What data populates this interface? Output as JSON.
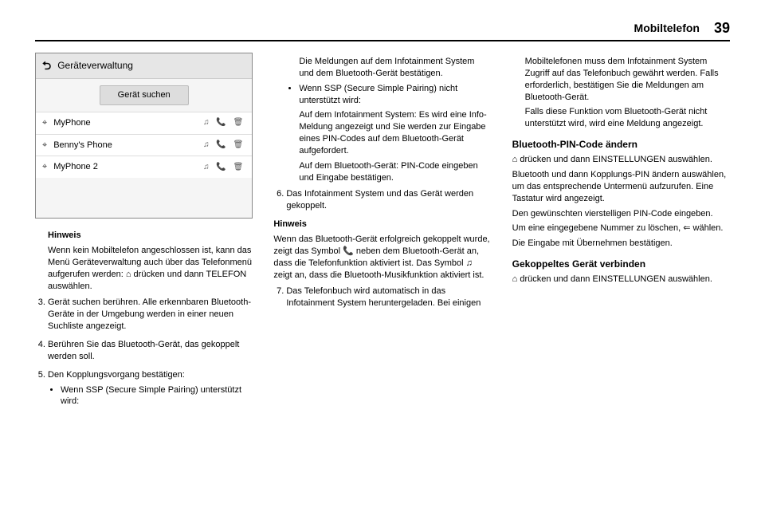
{
  "header": {
    "title": "Mobiltelefon",
    "page": "39"
  },
  "screenshot": {
    "title": "Geräteverwaltung",
    "back": "⮌",
    "search_btn": "Gerät suchen",
    "rows": [
      {
        "bt": "⌖",
        "name": "MyPhone",
        "icons": "♫  📞  🗑"
      },
      {
        "bt": "⌖",
        "name": "Benny's Phone",
        "icons": "♫  📞  🗑"
      },
      {
        "bt": "⌖",
        "name": "MyPhone 2",
        "icons": "♫  📞  🗑"
      }
    ]
  },
  "col1": {
    "hinweis_label": "Hinweis",
    "hinweis_text": "Wenn kein Mobiltelefon angeschlossen ist, kann das Menü Geräteverwaltung auch über das Telefonmenü aufgerufen werden: ⌂ drücken und dann TELEFON auswählen.",
    "step3": "Gerät suchen berühren. Alle erkennbaren Bluetooth-Geräte in der Umgebung werden in einer neuen Suchliste angezeigt.",
    "step4": "Berühren Sie das Bluetooth-Gerät, das gekoppelt werden soll.",
    "step5": "Den Kopplungsvorgang bestätigen:",
    "step5a": "Wenn SSP (Secure Simple Pairing) unterstützt wird:"
  },
  "col2": {
    "p1": "Die Meldungen auf dem Infotainment System und dem Bluetooth-Gerät bestätigen.",
    "b2_lead": "Wenn SSP (Secure Simple Pairing) nicht unterstützt wird:",
    "b2_a": "Auf dem Infotainment System: Es wird eine Info-Meldung angezeigt und Sie werden zur Eingabe eines PIN-Codes auf dem Bluetooth-Gerät aufgefordert.",
    "b2_b": "Auf dem Bluetooth-Gerät: PIN-Code eingeben und Eingabe bestätigen.",
    "step6": "Das Infotainment System und das Gerät werden gekoppelt.",
    "hinweis_label": "Hinweis",
    "hinweis_text": "Wenn das Bluetooth-Gerät erfolgreich gekoppelt wurde, zeigt das Symbol 📞 neben dem Bluetooth-Gerät an, dass die Telefonfunktion aktiviert ist. Das Symbol ♫ zeigt an, dass die Bluetooth-Musikfunktion aktiviert ist.",
    "step7": "Das Telefonbuch wird automatisch in das Infotainment System heruntergeladen. Bei einigen"
  },
  "col3": {
    "p1": "Mobiltelefonen muss dem Infotainment System Zugriff auf das Telefonbuch gewährt werden. Falls erforderlich, bestätigen Sie die Meldungen am Bluetooth-Gerät.",
    "p2": "Falls diese Funktion vom Bluetooth-Gerät nicht unterstützt wird, wird eine Meldung angezeigt.",
    "h_pin": "Bluetooth-PIN-Code ändern",
    "pin1": "⌂ drücken und dann EINSTELLUNGEN auswählen.",
    "pin2": "Bluetooth und dann Kopplungs-PIN ändern auswählen, um das entsprechende Untermenü aufzurufen. Eine Tastatur wird angezeigt.",
    "pin3": "Den gewünschten vierstelligen PIN-Code eingeben.",
    "pin4": "Um eine eingegebene Nummer zu löschen, ⇐ wählen.",
    "pin5": "Die Eingabe mit Übernehmen bestätigen.",
    "h_conn": "Gekoppeltes Gerät verbinden",
    "conn1": "⌂ drücken und dann EINSTELLUNGEN auswählen."
  }
}
